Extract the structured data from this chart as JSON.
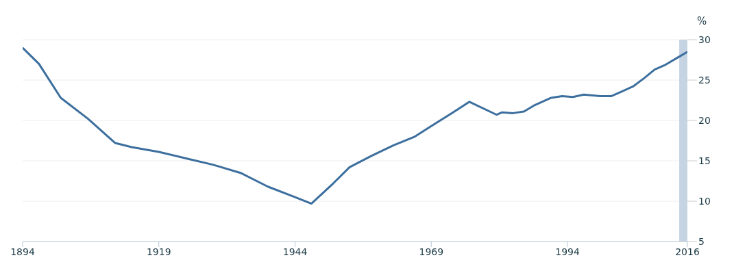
{
  "chart_data": {
    "type": "line",
    "ylabel": "%",
    "x": [
      1894,
      1897,
      1901,
      1906,
      1911,
      1914,
      1919,
      1924,
      1929,
      1934,
      1939,
      1944,
      1947,
      1951,
      1954,
      1958,
      1962,
      1966,
      1969,
      1973,
      1976,
      1981,
      1982,
      1984,
      1986,
      1988,
      1991,
      1993,
      1995,
      1997,
      2000,
      2002,
      2004,
      2006,
      2008,
      2010,
      2012,
      2014,
      2016
    ],
    "series": [
      {
        "color": "#3d6f9e",
        "values": [
          29.0,
          27.0,
          22.8,
          20.2,
          17.2,
          16.7,
          16.1,
          15.3,
          14.5,
          13.5,
          11.8,
          10.5,
          9.7,
          12.2,
          14.2,
          15.6,
          16.9,
          18.0,
          19.3,
          21.0,
          22.3,
          20.7,
          21.0,
          20.9,
          21.1,
          21.9,
          22.8,
          23.0,
          22.9,
          23.2,
          23.0,
          23.0,
          23.6,
          24.2,
          25.2,
          26.3,
          26.9,
          27.7,
          28.5
        ]
      }
    ],
    "xlim": [
      1894,
      2016
    ],
    "xticks": [
      1894,
      1919,
      1944,
      1969,
      1994,
      2016
    ],
    "ylim": [
      5,
      30
    ],
    "yticks": [
      5,
      10,
      15,
      20,
      25,
      30
    ],
    "bands": [
      {
        "axis": "x",
        "from": 2014.5,
        "to": 2016,
        "color": "#c5d3e3"
      }
    ],
    "grid": "y",
    "legend": false,
    "marker": "none",
    "line_style": "solid"
  }
}
